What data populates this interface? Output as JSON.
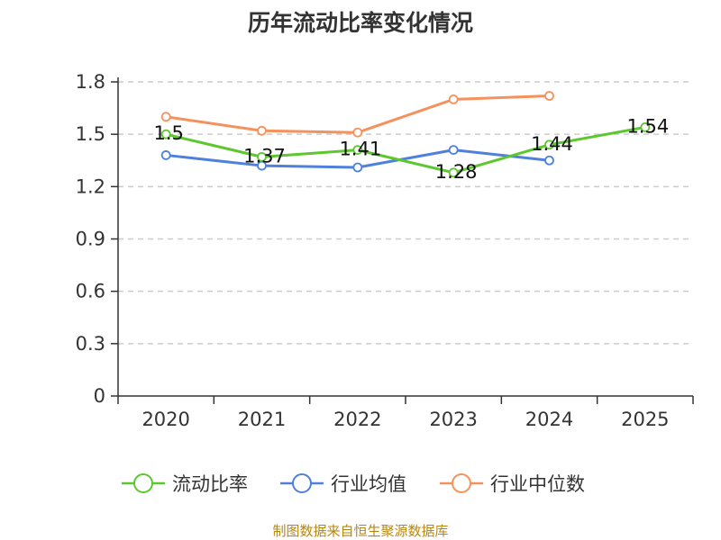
{
  "chart_data": {
    "type": "line",
    "title": "历年流动比率变化情况",
    "categories": [
      "2020",
      "2021",
      "2022",
      "2023",
      "2024",
      "2025"
    ],
    "yticks": [
      "0",
      "0.3",
      "0.6",
      "0.9",
      "1.2",
      "1.5",
      "1.8"
    ],
    "ylim": [
      0,
      1.8
    ],
    "grid": true,
    "legend_position": "bottom",
    "series": [
      {
        "name": "流动比率",
        "color": "#5cc72e",
        "values": [
          1.5,
          1.37,
          1.41,
          1.28,
          1.44,
          1.54
        ],
        "labels": [
          "1.5",
          "1.37",
          "1.41",
          "1.28",
          "1.44",
          "1.54"
        ]
      },
      {
        "name": "行业均值",
        "color": "#4e80dc",
        "values": [
          1.38,
          1.32,
          1.31,
          1.41,
          1.35,
          null
        ]
      },
      {
        "name": "行业中位数",
        "color": "#f5915c",
        "values": [
          1.6,
          1.52,
          1.51,
          1.7,
          1.72,
          null
        ]
      }
    ]
  },
  "footer": {
    "source": "制图数据来自恒生聚源数据库"
  }
}
